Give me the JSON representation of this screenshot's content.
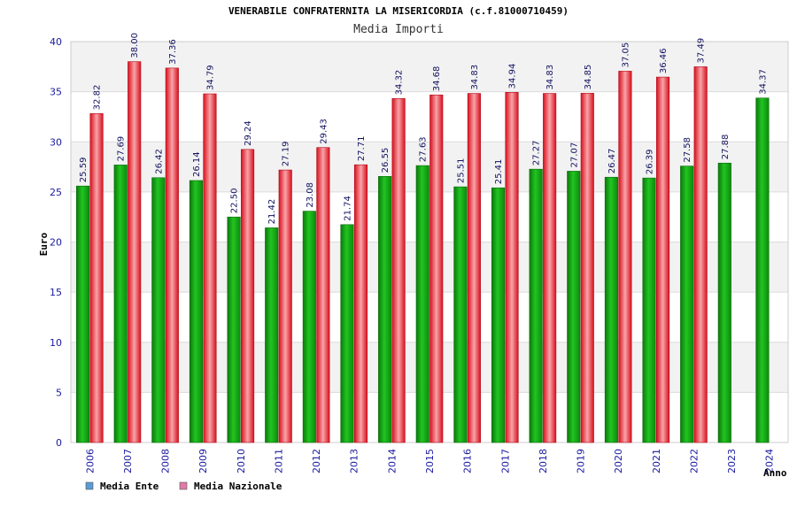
{
  "chart_data": {
    "type": "bar",
    "title": "VENERABILE CONFRATERNITA LA MISERICORDIA (c.f.81000710459)",
    "subtitle": "Media Importi",
    "ylabel": "Euro",
    "xlabel": "Anno",
    "ylim": [
      0,
      40
    ],
    "yticks": [
      0,
      5,
      10,
      15,
      20,
      25,
      30,
      35,
      40
    ],
    "grid": true,
    "legend_position": "bottom-left",
    "categories": [
      "2006",
      "2007",
      "2008",
      "2009",
      "2010",
      "2011",
      "2012",
      "2013",
      "2014",
      "2015",
      "2016",
      "2017",
      "2018",
      "2019",
      "2020",
      "2021",
      "2022",
      "2023",
      "2024"
    ],
    "series": [
      {
        "name": "Media Ente",
        "color": "#1fa81f",
        "legend_color": "#5b9bd5",
        "values": [
          25.59,
          27.69,
          26.42,
          26.14,
          22.5,
          21.42,
          23.08,
          21.74,
          26.55,
          27.63,
          25.51,
          25.41,
          27.27,
          27.07,
          26.47,
          26.39,
          27.58,
          27.88,
          34.37
        ],
        "labels": [
          "25.59",
          "27.69",
          "26.42",
          "26.14",
          "22.50",
          "21.42",
          "23.08",
          "21.74",
          "26.55",
          "27.63",
          "25.51",
          "25.41",
          "27.27",
          "27.07",
          "26.47",
          "26.39",
          "27.58",
          "27.88",
          "34.37"
        ]
      },
      {
        "name": "Media Nazionale",
        "color": "#e8283c",
        "legend_color": "#e07aa8",
        "values": [
          32.82,
          38.0,
          37.36,
          34.79,
          29.24,
          27.19,
          29.43,
          27.71,
          34.32,
          34.68,
          34.83,
          34.94,
          34.83,
          34.85,
          37.05,
          36.46,
          37.49,
          null,
          null
        ],
        "labels": [
          "32.82",
          "38.00",
          "37.36",
          "34.79",
          "29.24",
          "27.19",
          "29.43",
          "27.71",
          "34.32",
          "34.68",
          "34.83",
          "34.94",
          "34.83",
          "34.85",
          "37.05",
          "36.46",
          "37.49",
          "",
          ""
        ]
      }
    ]
  }
}
